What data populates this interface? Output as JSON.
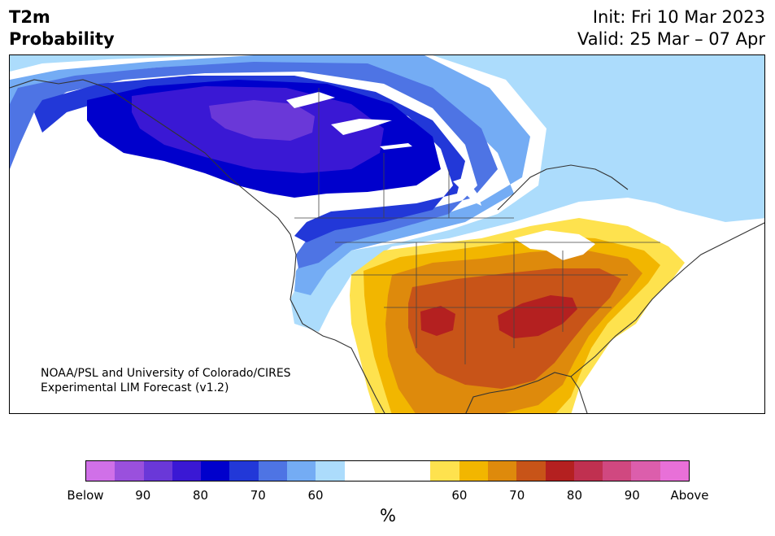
{
  "title": {
    "line1": "T2m",
    "line2": "Probability"
  },
  "init": {
    "line1": "Init: Fri 10 Mar 2023",
    "line2": "Valid: 25 Mar – 07 Apr"
  },
  "credit": {
    "line1": "NOAA/PSL and University of Colorado/CIRES",
    "line2": "Experimental LIM Forecast (v1.2)"
  },
  "colorbar": {
    "unit": "%",
    "below_colors": [
      "#d070e8",
      "#9a50dd",
      "#6a38d8",
      "#3a18d4",
      "#0000cc",
      "#2238d8",
      "#4e74e4",
      "#74acf4",
      "#acdcfc"
    ],
    "neutral_color": "#ffffff",
    "above_colors": [
      "#fee24e",
      "#f2b600",
      "#de8a0c",
      "#c85418",
      "#b42020",
      "#c03050",
      "#d04880",
      "#dc5eac",
      "#e870d8"
    ],
    "tick_labels": [
      "Below",
      "90",
      "80",
      "70",
      "60",
      "60",
      "70",
      "80",
      "90",
      "Above"
    ]
  },
  "map": {
    "regions": [
      {
        "name": "alaska",
        "color": "#74acf4"
      },
      {
        "name": "canada-west",
        "color": "#0000cc"
      },
      {
        "name": "canada-core",
        "color": "#6a38d8"
      },
      {
        "name": "us-northwest",
        "color": "#acdcfc"
      },
      {
        "name": "us-south-central",
        "color": "#c85418"
      },
      {
        "name": "us-southeast",
        "color": "#b42020"
      },
      {
        "name": "northeast-canada",
        "color": "#acdcfc"
      }
    ]
  }
}
